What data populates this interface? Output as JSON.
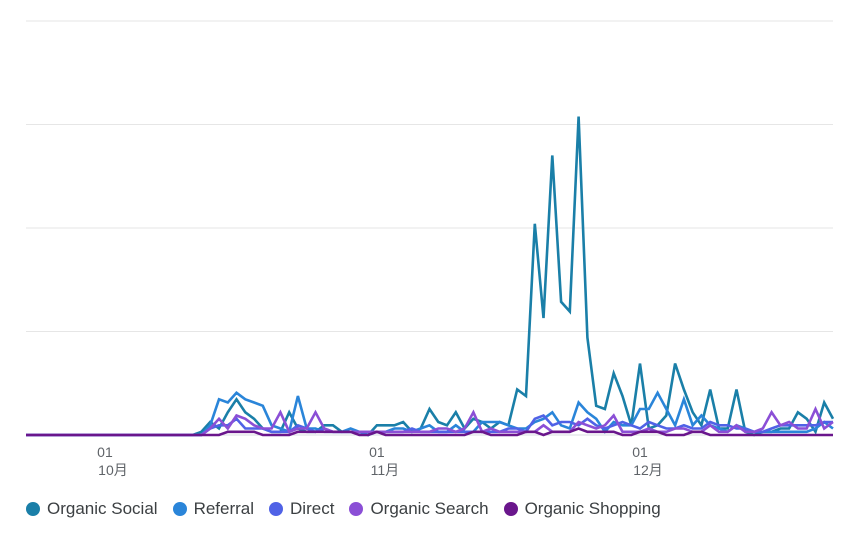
{
  "chart_data": {
    "type": "line",
    "title": "",
    "xlabel": "",
    "ylabel": "",
    "x_ticks": [
      {
        "day": "01",
        "month": "10月"
      },
      {
        "day": "01",
        "month": "11月"
      },
      {
        "day": "01",
        "month": "12月"
      }
    ],
    "y_tick_labels_visible": false,
    "ylim": [
      0,
      100
    ],
    "grid": true,
    "legend_position": "bottom-left",
    "x_dates": [
      "09-22",
      "09-23",
      "09-24",
      "09-25",
      "09-26",
      "09-27",
      "09-28",
      "09-29",
      "09-30",
      "10-01",
      "10-02",
      "10-03",
      "10-04",
      "10-05",
      "10-06",
      "10-07",
      "10-08",
      "10-09",
      "10-10",
      "10-11",
      "10-12",
      "10-13",
      "10-14",
      "10-15",
      "10-16",
      "10-17",
      "10-18",
      "10-19",
      "10-20",
      "10-21",
      "10-22",
      "10-23",
      "10-24",
      "10-25",
      "10-26",
      "10-27",
      "10-28",
      "10-29",
      "10-30",
      "10-31",
      "11-01",
      "11-02",
      "11-03",
      "11-04",
      "11-05",
      "11-06",
      "11-07",
      "11-08",
      "11-09",
      "11-10",
      "11-11",
      "11-12",
      "11-13",
      "11-14",
      "11-15",
      "11-16",
      "11-17",
      "11-18",
      "11-19",
      "11-20",
      "11-21",
      "11-22",
      "11-23",
      "11-24",
      "11-25",
      "11-26",
      "11-27",
      "11-28",
      "11-29",
      "11-30",
      "12-01",
      "12-02",
      "12-03",
      "12-04",
      "12-05",
      "12-06",
      "12-07",
      "12-08",
      "12-09",
      "12-10",
      "12-11",
      "12-12",
      "12-13",
      "12-14",
      "12-15",
      "12-16",
      "12-17",
      "12-18",
      "12-19",
      "12-20",
      "12-21",
      "12-22",
      "12-23"
    ],
    "series": [
      {
        "name": "Organic Social",
        "color": "#1a7fa8",
        "values": [
          0,
          0,
          0,
          0,
          0,
          0,
          0,
          0,
          0,
          0,
          0,
          0,
          0,
          0,
          0,
          0,
          0,
          0,
          0,
          0,
          1,
          4,
          2,
          7,
          11,
          7,
          5,
          2,
          1,
          1,
          7,
          2,
          1,
          1,
          3,
          3,
          1,
          1,
          1,
          0,
          3,
          3,
          3,
          4,
          1,
          2,
          8,
          4,
          3,
          7,
          2,
          5,
          4,
          2,
          4,
          3,
          14,
          12,
          65,
          36,
          86,
          41,
          38,
          98,
          30,
          9,
          8,
          19,
          12,
          3,
          22,
          2,
          3,
          6,
          22,
          14,
          7,
          3,
          14,
          2,
          2,
          14,
          1,
          0,
          1,
          1,
          2,
          2,
          7,
          5,
          1,
          10,
          5
        ]
      },
      {
        "name": "Referral",
        "color": "#2a85d9",
        "values": [
          0,
          0,
          0,
          0,
          0,
          0,
          0,
          0,
          0,
          0,
          0,
          0,
          0,
          0,
          0,
          0,
          0,
          0,
          0,
          0,
          0,
          3,
          11,
          10,
          13,
          11,
          10,
          9,
          3,
          2,
          1,
          12,
          2,
          2,
          1,
          1,
          1,
          2,
          1,
          0,
          1,
          1,
          2,
          2,
          1,
          2,
          3,
          1,
          1,
          3,
          1,
          1,
          4,
          4,
          4,
          3,
          2,
          2,
          4,
          5,
          7,
          3,
          2,
          10,
          7,
          5,
          1,
          4,
          3,
          3,
          8,
          8,
          13,
          8,
          3,
          11,
          3,
          6,
          3,
          2,
          1,
          3,
          2,
          1,
          1,
          1,
          1,
          1,
          1,
          1,
          2,
          4,
          2
        ]
      },
      {
        "name": "Direct",
        "color": "#5062e6",
        "values": [
          0,
          0,
          0,
          0,
          0,
          0,
          0,
          0,
          0,
          0,
          0,
          0,
          0,
          0,
          0,
          0,
          0,
          0,
          0,
          0,
          0,
          2,
          3,
          3,
          5,
          2,
          2,
          2,
          1,
          1,
          1,
          3,
          2,
          1,
          2,
          1,
          1,
          1,
          1,
          1,
          1,
          1,
          1,
          1,
          2,
          1,
          1,
          1,
          1,
          1,
          1,
          1,
          1,
          1,
          1,
          2,
          2,
          1,
          5,
          6,
          3,
          4,
          4,
          3,
          5,
          3,
          2,
          3,
          4,
          3,
          2,
          4,
          3,
          2,
          2,
          3,
          2,
          2,
          4,
          3,
          3,
          2,
          2,
          1,
          1,
          2,
          3,
          3,
          3,
          3,
          3,
          4,
          4
        ]
      },
      {
        "name": "Organic Search",
        "color": "#8b4fd6",
        "values": [
          0,
          0,
          0,
          0,
          0,
          0,
          0,
          0,
          0,
          0,
          0,
          0,
          0,
          0,
          0,
          0,
          0,
          0,
          0,
          0,
          0,
          2,
          5,
          2,
          6,
          5,
          3,
          2,
          2,
          7,
          1,
          2,
          2,
          7,
          2,
          1,
          1,
          1,
          1,
          1,
          1,
          1,
          1,
          1,
          1,
          1,
          1,
          2,
          2,
          1,
          2,
          7,
          1,
          2,
          1,
          1,
          1,
          1,
          1,
          3,
          1,
          1,
          1,
          4,
          3,
          2,
          3,
          6,
          1,
          1,
          1,
          2,
          1,
          1,
          2,
          2,
          1,
          1,
          3,
          1,
          1,
          3,
          1,
          1,
          2,
          7,
          3,
          4,
          2,
          2,
          8,
          2,
          4
        ]
      },
      {
        "name": "Organic Shopping",
        "color": "#6a168c",
        "values": [
          0,
          0,
          0,
          0,
          0,
          0,
          0,
          0,
          0,
          0,
          0,
          0,
          0,
          0,
          0,
          0,
          0,
          0,
          0,
          0,
          0,
          0,
          0,
          1,
          1,
          1,
          1,
          0,
          0,
          0,
          0,
          1,
          1,
          1,
          1,
          1,
          1,
          1,
          0,
          0,
          1,
          0,
          0,
          0,
          0,
          0,
          0,
          0,
          0,
          0,
          0,
          1,
          1,
          0,
          0,
          0,
          0,
          1,
          1,
          0,
          1,
          1,
          1,
          2,
          1,
          1,
          1,
          1,
          0,
          0,
          1,
          1,
          1,
          0,
          0,
          0,
          1,
          1,
          0,
          0,
          0,
          0,
          0,
          0,
          0,
          0,
          0,
          0,
          0,
          0,
          0,
          0,
          0
        ]
      }
    ]
  }
}
